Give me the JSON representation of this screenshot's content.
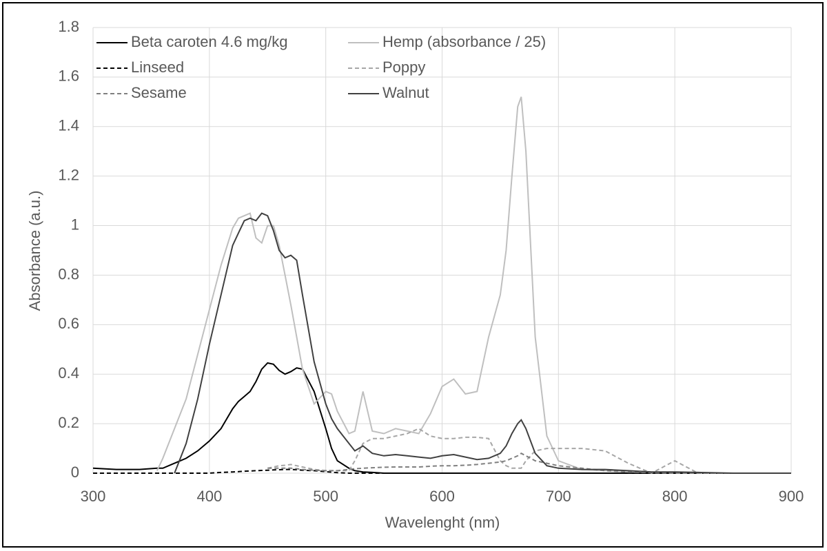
{
  "chart_data": {
    "type": "line",
    "x_label": "Wavelenght (nm)",
    "y_label": "Absorbance (a.u.)",
    "xlim": [
      300,
      900
    ],
    "xticks": [
      300,
      400,
      500,
      600,
      700,
      800,
      900
    ],
    "ylim": [
      0,
      1.8
    ],
    "yticks": [
      0,
      0.2,
      0.4,
      0.6,
      0.8,
      1,
      1.2,
      1.4,
      1.6,
      1.8
    ],
    "grid": true,
    "legend": "top",
    "x": [
      300,
      320,
      340,
      355,
      360,
      370,
      380,
      390,
      400,
      410,
      420,
      425,
      430,
      435,
      440,
      445,
      450,
      455,
      460,
      465,
      470,
      475,
      480,
      490,
      500,
      505,
      510,
      520,
      525,
      532,
      540,
      550,
      560,
      570,
      580,
      590,
      600,
      610,
      620,
      630,
      640,
      650,
      655,
      660,
      665,
      668,
      672,
      680,
      690,
      700,
      720,
      740,
      760,
      780,
      800,
      820,
      850,
      900
    ],
    "series": [
      {
        "name": "Beta caroten 4.6 mg/kg",
        "color": "#000000",
        "line_style": "solid",
        "values": [
          0.02,
          0.015,
          0.015,
          0.02,
          0.02,
          0.04,
          0.06,
          0.09,
          0.13,
          0.18,
          0.26,
          0.29,
          0.31,
          0.33,
          0.37,
          0.42,
          0.445,
          0.44,
          0.415,
          0.4,
          0.41,
          0.425,
          0.42,
          0.33,
          0.18,
          0.1,
          0.05,
          0.02,
          0.01,
          0.005,
          0.003,
          0,
          0,
          0,
          0,
          0,
          0,
          0,
          0,
          0,
          0,
          0,
          0,
          0,
          0,
          0,
          0,
          0,
          0,
          0,
          0,
          0,
          0,
          0,
          0,
          0,
          0,
          0
        ]
      },
      {
        "name": "Hemp (absorbance / 25)",
        "color": "#bfbfbf",
        "line_style": "solid",
        "values": [
          null,
          null,
          null,
          0.01,
          0.06,
          0.18,
          0.3,
          0.48,
          0.66,
          0.84,
          0.99,
          1.03,
          1.04,
          1.05,
          0.95,
          0.93,
          1.0,
          1.0,
          0.92,
          0.8,
          0.68,
          0.55,
          0.42,
          0.28,
          0.33,
          0.32,
          0.25,
          0.16,
          0.17,
          0.33,
          0.17,
          0.16,
          0.18,
          0.17,
          0.16,
          0.24,
          0.35,
          0.38,
          0.32,
          0.33,
          0.55,
          0.72,
          0.9,
          1.2,
          1.48,
          1.52,
          1.3,
          0.55,
          0.15,
          0.05,
          0.015,
          0.01,
          0.005,
          0.003,
          0.001,
          0,
          0,
          0
        ]
      },
      {
        "name": "Linseed",
        "color": "#000000",
        "line_style": "dashed",
        "values": [
          0,
          0,
          0,
          0,
          0,
          0,
          0,
          0,
          0,
          0.003,
          0.005,
          0.006,
          0.008,
          0.009,
          0.01,
          0.011,
          0.012,
          0.013,
          0.014,
          0.015,
          0.015,
          0.014,
          0.012,
          0.01,
          0.006,
          0.004,
          0.002,
          0,
          0,
          0,
          0,
          0,
          0,
          0,
          0,
          0,
          0,
          0,
          0,
          0,
          0,
          0,
          0,
          0,
          0,
          0,
          0,
          0,
          0,
          0,
          0,
          0,
          0,
          0,
          0,
          0,
          0,
          0
        ]
      },
      {
        "name": "Poppy",
        "color": "#a6a6a6",
        "line_style": "dashed",
        "values": [
          null,
          null,
          null,
          null,
          null,
          null,
          null,
          null,
          null,
          null,
          null,
          null,
          null,
          null,
          null,
          null,
          0.02,
          0.025,
          0.03,
          0.032,
          0.035,
          0.03,
          0.025,
          0.015,
          0.01,
          0.01,
          0.01,
          0.01,
          0.05,
          0.12,
          0.14,
          0.14,
          0.15,
          0.16,
          0.18,
          0.15,
          0.14,
          0.14,
          0.145,
          0.145,
          0.14,
          0.05,
          0.03,
          0.02,
          0.02,
          0.02,
          0.05,
          0.09,
          0.1,
          0.1,
          0.1,
          0.09,
          0.04,
          0.0,
          0.05,
          0.0,
          0,
          0
        ]
      },
      {
        "name": "Sesame",
        "color": "#7f7f7f",
        "line_style": "dashed",
        "values": [
          null,
          null,
          null,
          null,
          null,
          null,
          null,
          null,
          null,
          null,
          null,
          null,
          null,
          null,
          null,
          null,
          0.02,
          0.02,
          0.02,
          0.02,
          0.02,
          0.018,
          0.015,
          0.012,
          0.01,
          0.01,
          0.01,
          0.015,
          0.018,
          0.02,
          0.022,
          0.024,
          0.025,
          0.025,
          0.025,
          0.028,
          0.03,
          0.03,
          0.032,
          0.035,
          0.04,
          0.045,
          0.05,
          0.06,
          0.07,
          0.08,
          0.07,
          0.05,
          0.04,
          0.03,
          0.02,
          0.01,
          0.005,
          0.002,
          0,
          0,
          0,
          0
        ]
      },
      {
        "name": "Walnut",
        "color": "#404040",
        "line_style": "solid",
        "values": [
          null,
          null,
          null,
          null,
          null,
          0,
          0.12,
          0.3,
          0.52,
          0.72,
          0.92,
          0.97,
          1.02,
          1.03,
          1.02,
          1.05,
          1.04,
          0.98,
          0.9,
          0.87,
          0.88,
          0.86,
          0.72,
          0.45,
          0.28,
          0.22,
          0.18,
          0.12,
          0.09,
          0.11,
          0.08,
          0.07,
          0.075,
          0.07,
          0.065,
          0.06,
          0.07,
          0.075,
          0.065,
          0.055,
          0.06,
          0.08,
          0.11,
          0.16,
          0.2,
          0.215,
          0.18,
          0.08,
          0.03,
          0.02,
          0.015,
          0.015,
          0.01,
          0.005,
          0.005,
          0.003,
          0,
          0
        ]
      }
    ]
  }
}
